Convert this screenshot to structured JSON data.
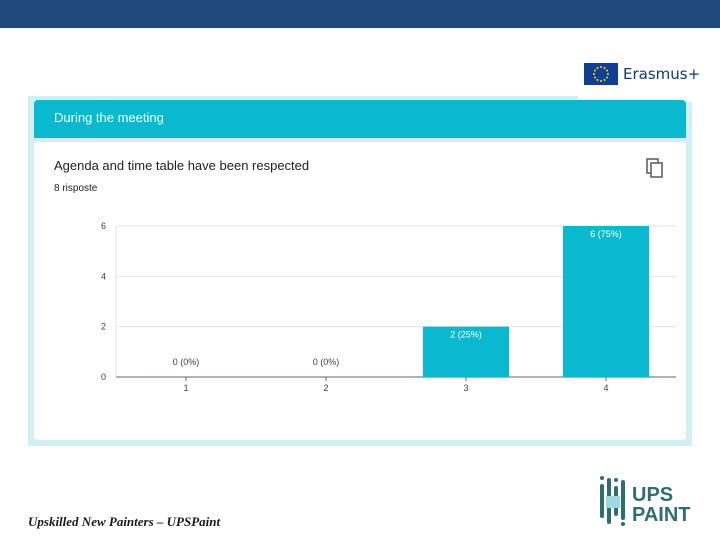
{
  "header": {
    "brand": "Erasmus+"
  },
  "section": {
    "title": "During the meeting"
  },
  "question": {
    "title": "Agenda and time table have been respected",
    "responses": "8 risposte"
  },
  "chart_data": {
    "type": "bar",
    "categories": [
      "1",
      "2",
      "3",
      "4"
    ],
    "values": [
      0,
      0,
      2,
      6
    ],
    "data_labels": [
      "0 (0%)",
      "0 (0%)",
      "2 (25%)",
      "6 (75%)"
    ],
    "yticks": [
      "0",
      "2",
      "4",
      "6"
    ],
    "ylim": [
      0,
      6
    ],
    "grid": true,
    "colors": {
      "bar": "#0ab8d0",
      "label_inside": "#ffffff",
      "label_outside": "#3c4043"
    }
  },
  "footer": {
    "text": "Upskilled New Painters – UPSPaint"
  },
  "logo": {
    "line1": "UPS",
    "line2": "PAINT"
  },
  "icons": {
    "copy": "copy-icon"
  }
}
